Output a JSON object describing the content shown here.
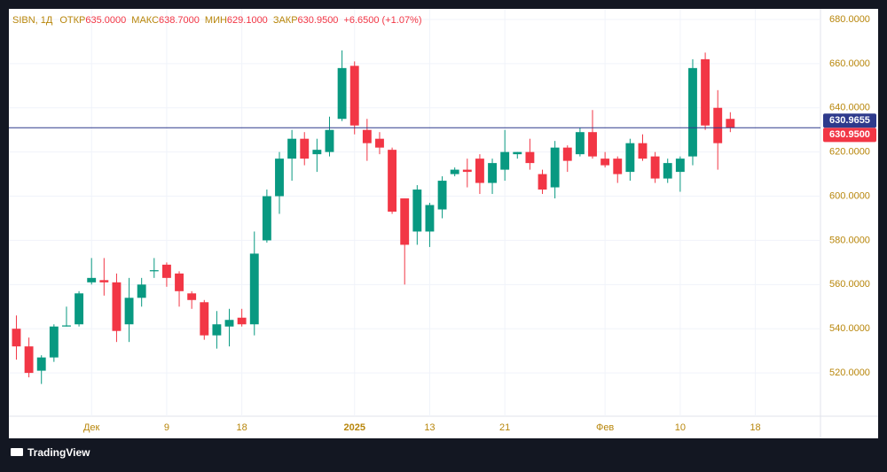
{
  "chart_data": {
    "type": "candlestick",
    "legend": {
      "symbol": "SIBN, 1Д",
      "items": [
        {
          "label": "ОТКР",
          "value": "635.0000"
        },
        {
          "label": "МАКС",
          "value": "638.7000"
        },
        {
          "label": "МИН",
          "value": "629.1000"
        },
        {
          "label": "ЗАКР",
          "value": "630.9500"
        }
      ],
      "change": "+6.6500 (+1.07%)"
    },
    "open": [
      540,
      532,
      521,
      527,
      541,
      542,
      561,
      562,
      561,
      542,
      554,
      566,
      569,
      565,
      556,
      552,
      537,
      541,
      545,
      542,
      580,
      600,
      617,
      626,
      619,
      620,
      635,
      659,
      630,
      626,
      621,
      599,
      584,
      584,
      594,
      610,
      612,
      617,
      606,
      612,
      619,
      620,
      610,
      604,
      622,
      619,
      629,
      617,
      617,
      611,
      624,
      618,
      608,
      611,
      618,
      662,
      640,
      635
    ],
    "high": [
      546,
      536,
      528,
      542,
      550,
      557,
      572,
      572,
      565,
      563,
      563,
      572,
      570,
      566,
      557,
      553,
      548,
      549,
      549,
      584,
      603,
      620,
      630,
      629,
      626,
      636,
      666,
      661,
      635,
      629,
      622,
      599,
      605,
      597,
      609,
      613,
      617,
      619,
      617,
      630,
      620,
      626,
      612,
      625,
      623,
      631,
      639,
      620,
      618,
      626,
      628,
      620,
      617,
      618,
      662,
      665,
      648,
      638
    ],
    "low": [
      526,
      518,
      515,
      525,
      541,
      541,
      560,
      555,
      534,
      534,
      550,
      563,
      559,
      550,
      549,
      535,
      531,
      532,
      541,
      537,
      579,
      592,
      607,
      614,
      611,
      618,
      634,
      628,
      616,
      619,
      592,
      560,
      578,
      577,
      590,
      609,
      604,
      601,
      601,
      607,
      617,
      612,
      601,
      599,
      611,
      618,
      617,
      613,
      606,
      607,
      616,
      606,
      606,
      602,
      614,
      630,
      612,
      629
    ],
    "close": [
      532,
      520,
      527,
      541,
      541.5,
      556,
      563,
      561,
      539,
      554,
      560,
      566.5,
      563,
      557,
      553,
      537,
      542,
      544,
      542,
      574,
      600,
      617,
      626,
      617,
      621,
      630,
      658,
      632,
      624,
      622,
      593,
      578,
      603,
      596,
      607,
      612,
      611,
      606,
      615,
      620,
      620,
      615,
      603,
      622,
      616,
      629,
      618,
      614,
      610,
      624,
      617,
      608,
      615,
      617,
      658,
      632,
      624,
      630.95
    ],
    "up_color": "#089981",
    "down_color": "#f23645",
    "xlim": [
      -0.6,
      64.2
    ],
    "xticks": [
      {
        "value": 6,
        "label": "Дек"
      },
      {
        "value": 12,
        "label": "9"
      },
      {
        "value": 18,
        "label": "18"
      },
      {
        "value": 27,
        "label": "2025"
      },
      {
        "value": 33,
        "label": "13"
      },
      {
        "value": 39,
        "label": "21"
      },
      {
        "value": 47,
        "label": "Фев"
      },
      {
        "value": 53,
        "label": "10"
      },
      {
        "value": 59,
        "label": "18"
      }
    ],
    "ylim": [
      500.4,
      684.8
    ],
    "yticks": [
      {
        "value": 520,
        "label": "520.0000"
      },
      {
        "value": 540,
        "label": "540.0000"
      },
      {
        "value": 560,
        "label": "560.0000"
      },
      {
        "value": 580,
        "label": "580.0000"
      },
      {
        "value": 600,
        "label": "600.0000"
      },
      {
        "value": 620,
        "label": "620.0000"
      },
      {
        "value": 640,
        "label": "640.0000"
      },
      {
        "value": 660,
        "label": "660.0000"
      },
      {
        "value": 680,
        "label": "680.0000"
      }
    ],
    "grid": true,
    "price_lines": [
      {
        "value": 630.9655,
        "label": "630.9655",
        "color": "#2e3a8c"
      },
      {
        "value": 630.95,
        "label": "630.9500",
        "color": "#f23645"
      }
    ]
  },
  "footer": {
    "brand": "TradingView"
  }
}
